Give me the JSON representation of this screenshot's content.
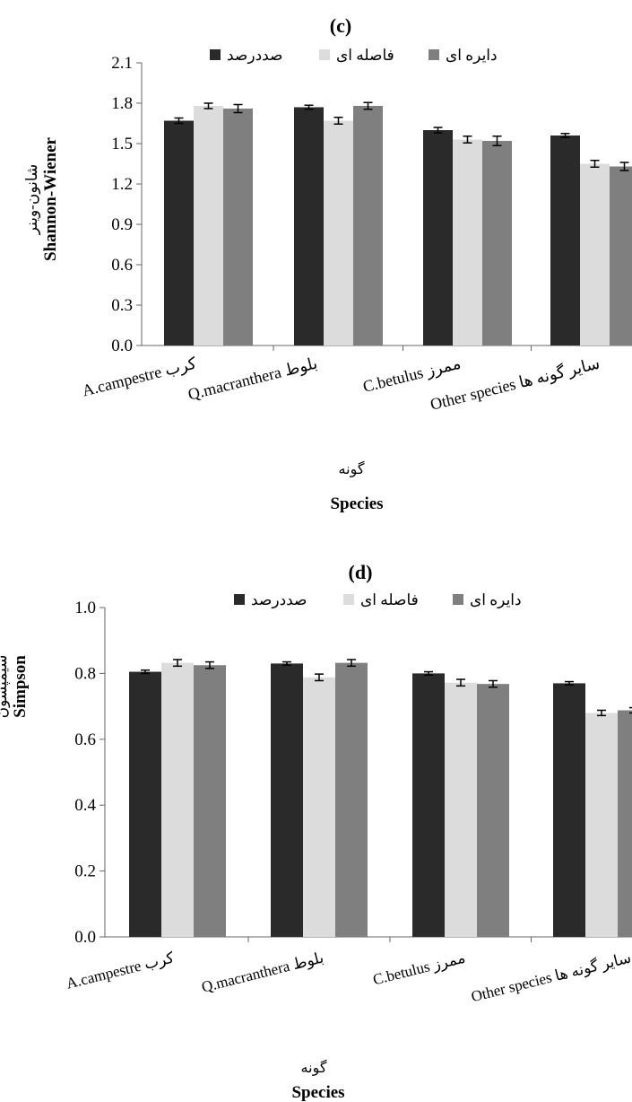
{
  "chart_data": [
    {
      "panel": "(c)",
      "type": "bar",
      "title": "(c)",
      "xlabel": "Species",
      "xlabel_fa": "گونه",
      "ylabel": "Shannon-Wiener",
      "ylabel_fa": "شانون-وینر",
      "ylim": [
        0,
        2.1
      ],
      "yticks": [
        "0.0",
        "0.3",
        "0.6",
        "0.9",
        "1.2",
        "1.5",
        "1.8",
        "2.1"
      ],
      "categories": [
        "A.campestre کرب",
        "Q.macranthera بلوط",
        "C.betulus ممرز",
        "Other species سایر گونه ها"
      ],
      "series": [
        {
          "name": "صددرصد",
          "color": "#2a2a2a",
          "values": [
            1.67,
            1.77,
            1.6,
            1.56
          ],
          "errors": [
            0.02,
            0.015,
            0.02,
            0.015
          ]
        },
        {
          "name": "فاصله ای",
          "color": "#dcdcdc",
          "values": [
            1.78,
            1.67,
            1.53,
            1.35
          ],
          "errors": [
            0.02,
            0.025,
            0.025,
            0.025
          ]
        },
        {
          "name": "دایره ای",
          "color": "#7f7f7f",
          "values": [
            1.76,
            1.78,
            1.52,
            1.33
          ],
          "errors": [
            0.03,
            0.025,
            0.035,
            0.03
          ]
        }
      ],
      "legend": "top"
    },
    {
      "panel": "(d)",
      "type": "bar",
      "title": "(d)",
      "xlabel": "Species",
      "xlabel_fa": "گونه",
      "ylabel": "Simpson",
      "ylabel_fa": "سیمپسون",
      "ylim": [
        0,
        1.0
      ],
      "yticks": [
        "0.0",
        "0.2",
        "0.4",
        "0.6",
        "0.8",
        "1.0"
      ],
      "categories": [
        "A.campestre کرب",
        "Q.macranthera بلوط",
        "C.betulus ممرز",
        "Other species سایر گونه ها"
      ],
      "series": [
        {
          "name": "صددرصد",
          "color": "#2a2a2a",
          "values": [
            0.805,
            0.83,
            0.8,
            0.77
          ],
          "errors": [
            0.005,
            0.005,
            0.005,
            0.005
          ]
        },
        {
          "name": "فاصله ای",
          "color": "#dcdcdc",
          "values": [
            0.832,
            0.788,
            0.772,
            0.68
          ],
          "errors": [
            0.01,
            0.01,
            0.01,
            0.008
          ]
        },
        {
          "name": "دایره ای",
          "color": "#7f7f7f",
          "values": [
            0.825,
            0.832,
            0.768,
            0.688
          ],
          "errors": [
            0.01,
            0.01,
            0.01,
            0.008
          ]
        }
      ],
      "legend": "top"
    }
  ]
}
